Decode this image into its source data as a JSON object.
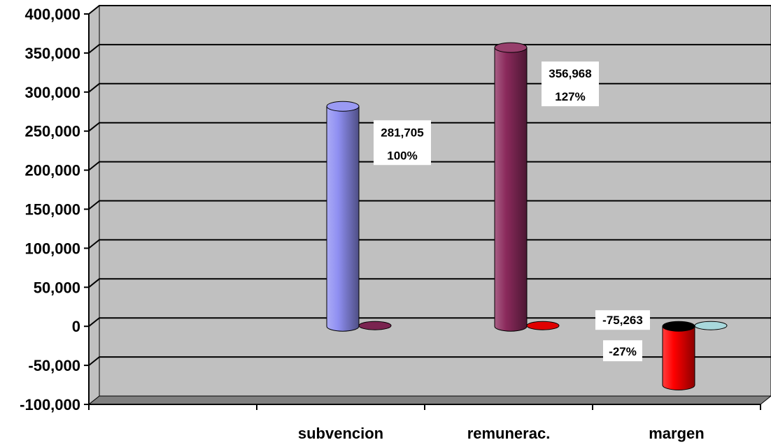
{
  "chart_data": {
    "type": "bar",
    "variant": "3d-cylinder",
    "title": "",
    "xlabel": "",
    "ylabel": "",
    "ylim": [
      -100000,
      400000
    ],
    "y_ticks": [
      400000,
      350000,
      300000,
      250000,
      200000,
      150000,
      100000,
      50000,
      0,
      -50000,
      -100000
    ],
    "y_tick_labels": [
      "400,000",
      "350,000",
      "300,000",
      "250,000",
      "200,000",
      "150,000",
      "100,000",
      "50,000",
      "0",
      "-50,000",
      "-100,000"
    ],
    "grid": true,
    "legend": "none",
    "categories": [
      "",
      "subvencion",
      "remunerac.",
      "margen"
    ],
    "series": [
      {
        "values": [
          null,
          281705,
          356968,
          -75263
        ],
        "data_labels": [
          "",
          "281,705",
          "356,968",
          "-75,263"
        ],
        "colors": [
          "",
          "#8f8ff2",
          "#8b2a5c",
          "#ff0000"
        ]
      },
      {
        "values": [
          null,
          0,
          0,
          0
        ],
        "percent_labels": [
          "",
          "100%",
          "127%",
          "-27%"
        ],
        "colors": [
          "",
          "#7a2450",
          "#e00000",
          "#a8d8dc"
        ]
      }
    ],
    "colors": {
      "wall": "#c0c0c0",
      "floor": "#808080",
      "gridline": "#000000"
    }
  }
}
